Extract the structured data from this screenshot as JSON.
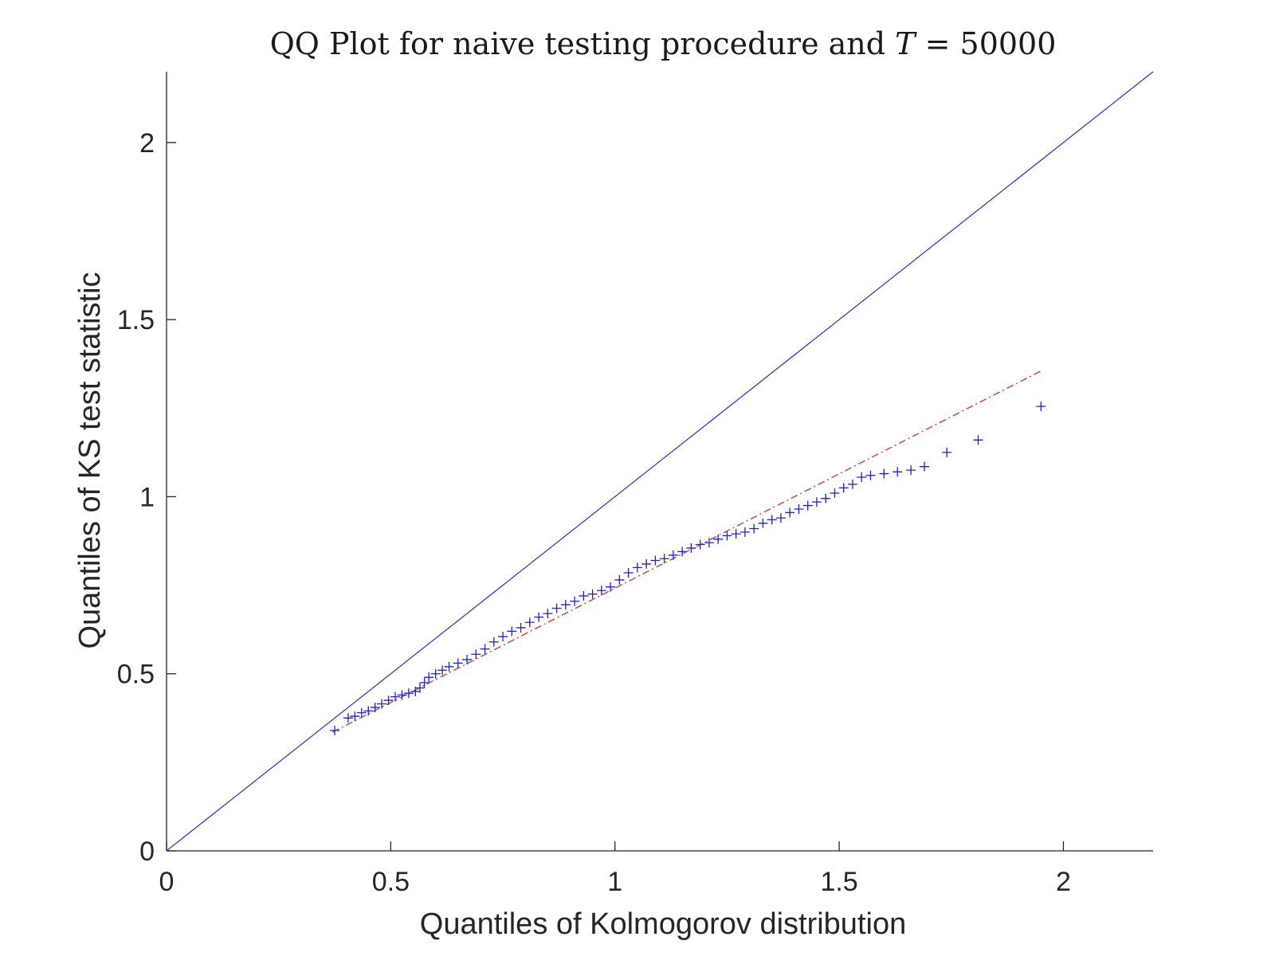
{
  "chart_data": {
    "type": "scatter",
    "title": "QQ Plot for naive testing procedure and T = 50000",
    "title_parts": {
      "prefix": "QQ Plot for naive testing procedure and ",
      "variable": "T",
      "suffix": " = 50000"
    },
    "xlabel": "Quantiles of Kolmogorov distribution",
    "ylabel": "Quantiles of KS test statistic",
    "xlim": [
      0,
      2.2
    ],
    "ylim": [
      0,
      2.2
    ],
    "xticks": [
      0,
      0.5,
      1,
      1.5,
      2
    ],
    "yticks": [
      0,
      0.5,
      1,
      1.5,
      2
    ],
    "xtick_labels": [
      "0",
      "0.5",
      "1",
      "1.5",
      "2"
    ],
    "ytick_labels": [
      "0",
      "0.5",
      "1",
      "1.5",
      "2"
    ],
    "grid": false,
    "colors": {
      "points": "#2020c8",
      "reference": "#2b2bd0",
      "fit": "#d03030",
      "axis": "#262626"
    },
    "reference_line": {
      "style": "solid",
      "from": [
        0,
        0
      ],
      "to": [
        2.2,
        2.2
      ]
    },
    "fit_line": {
      "style": "dash-dot",
      "from": [
        0.37,
        0.335
      ],
      "to": [
        1.95,
        1.355
      ]
    },
    "series": [
      {
        "marker": "+",
        "x": [
          0.375,
          0.405,
          0.42,
          0.435,
          0.45,
          0.465,
          0.48,
          0.495,
          0.51,
          0.525,
          0.54,
          0.555,
          0.565,
          0.575,
          0.585,
          0.6,
          0.615,
          0.63,
          0.65,
          0.67,
          0.69,
          0.71,
          0.73,
          0.75,
          0.77,
          0.79,
          0.81,
          0.83,
          0.85,
          0.87,
          0.89,
          0.91,
          0.93,
          0.95,
          0.97,
          0.99,
          1.01,
          1.03,
          1.05,
          1.07,
          1.09,
          1.11,
          1.13,
          1.15,
          1.17,
          1.19,
          1.21,
          1.23,
          1.25,
          1.27,
          1.29,
          1.31,
          1.33,
          1.35,
          1.37,
          1.39,
          1.41,
          1.43,
          1.45,
          1.47,
          1.49,
          1.51,
          1.53,
          1.55,
          1.57,
          1.6,
          1.63,
          1.66,
          1.69,
          1.74,
          1.81,
          1.95
        ],
        "y": [
          0.34,
          0.375,
          0.38,
          0.39,
          0.395,
          0.405,
          0.415,
          0.425,
          0.435,
          0.44,
          0.445,
          0.45,
          0.46,
          0.475,
          0.49,
          0.5,
          0.51,
          0.52,
          0.53,
          0.54,
          0.555,
          0.57,
          0.59,
          0.605,
          0.62,
          0.63,
          0.645,
          0.66,
          0.67,
          0.685,
          0.695,
          0.705,
          0.72,
          0.725,
          0.735,
          0.745,
          0.765,
          0.785,
          0.8,
          0.81,
          0.82,
          0.825,
          0.835,
          0.845,
          0.855,
          0.865,
          0.87,
          0.88,
          0.89,
          0.895,
          0.9,
          0.91,
          0.925,
          0.935,
          0.94,
          0.955,
          0.965,
          0.975,
          0.985,
          0.995,
          1.01,
          1.025,
          1.035,
          1.055,
          1.06,
          1.065,
          1.07,
          1.075,
          1.085,
          1.125,
          1.16,
          1.255
        ]
      }
    ]
  }
}
